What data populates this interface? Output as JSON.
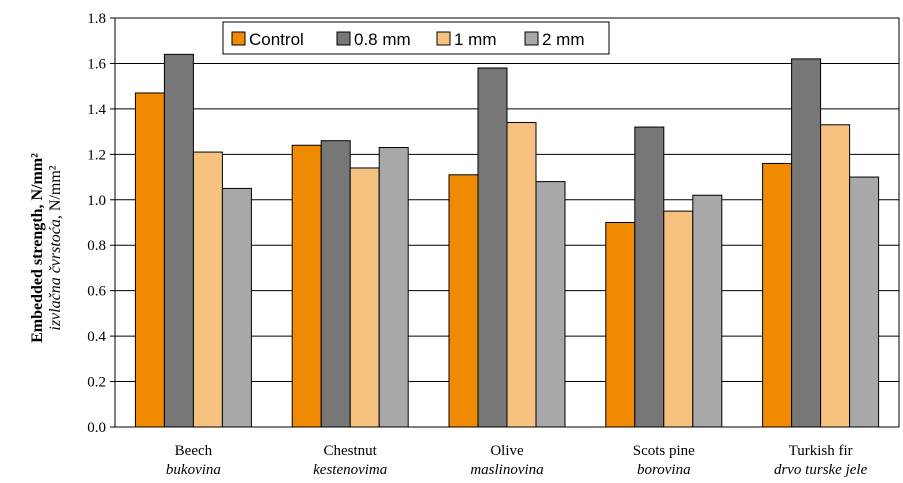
{
  "chart_data": {
    "type": "bar",
    "categories": [
      {
        "en": "Beech",
        "hr": "bukovina"
      },
      {
        "en": "Chestnut",
        "hr": "kestenovima"
      },
      {
        "en": "Olive",
        "hr": "maslinovina"
      },
      {
        "en": "Scots pine",
        "hr": "borovina"
      },
      {
        "en": "Turkish fir",
        "hr": "drvo turske jele"
      }
    ],
    "series": [
      {
        "name": "Control",
        "color": "#F08A00",
        "values": [
          1.47,
          1.24,
          1.11,
          0.9,
          1.16
        ]
      },
      {
        "name": "0.8 mm",
        "color": "#777777",
        "values": [
          1.64,
          1.26,
          1.58,
          1.32,
          1.62
        ]
      },
      {
        "name": "1 mm",
        "color": "#F7C27F",
        "values": [
          1.21,
          1.14,
          1.34,
          0.95,
          1.33
        ]
      },
      {
        "name": "2 mm",
        "color": "#A8A8AB",
        "values": [
          1.05,
          1.23,
          1.08,
          1.02,
          1.1
        ]
      }
    ],
    "yticks": [
      "0.0",
      "0.2",
      "0.4",
      "0.6",
      "0.8",
      "1.0",
      "1.2",
      "1.4",
      "1.6",
      "1.8"
    ],
    "ylim": [
      0,
      1.8
    ],
    "ylabel": {
      "bold": "Embedded strength, N/mm²",
      "italic": "izvlačna čvrstoća,",
      "unit": "N/mm²"
    },
    "grid": true,
    "legend_position": "top"
  }
}
